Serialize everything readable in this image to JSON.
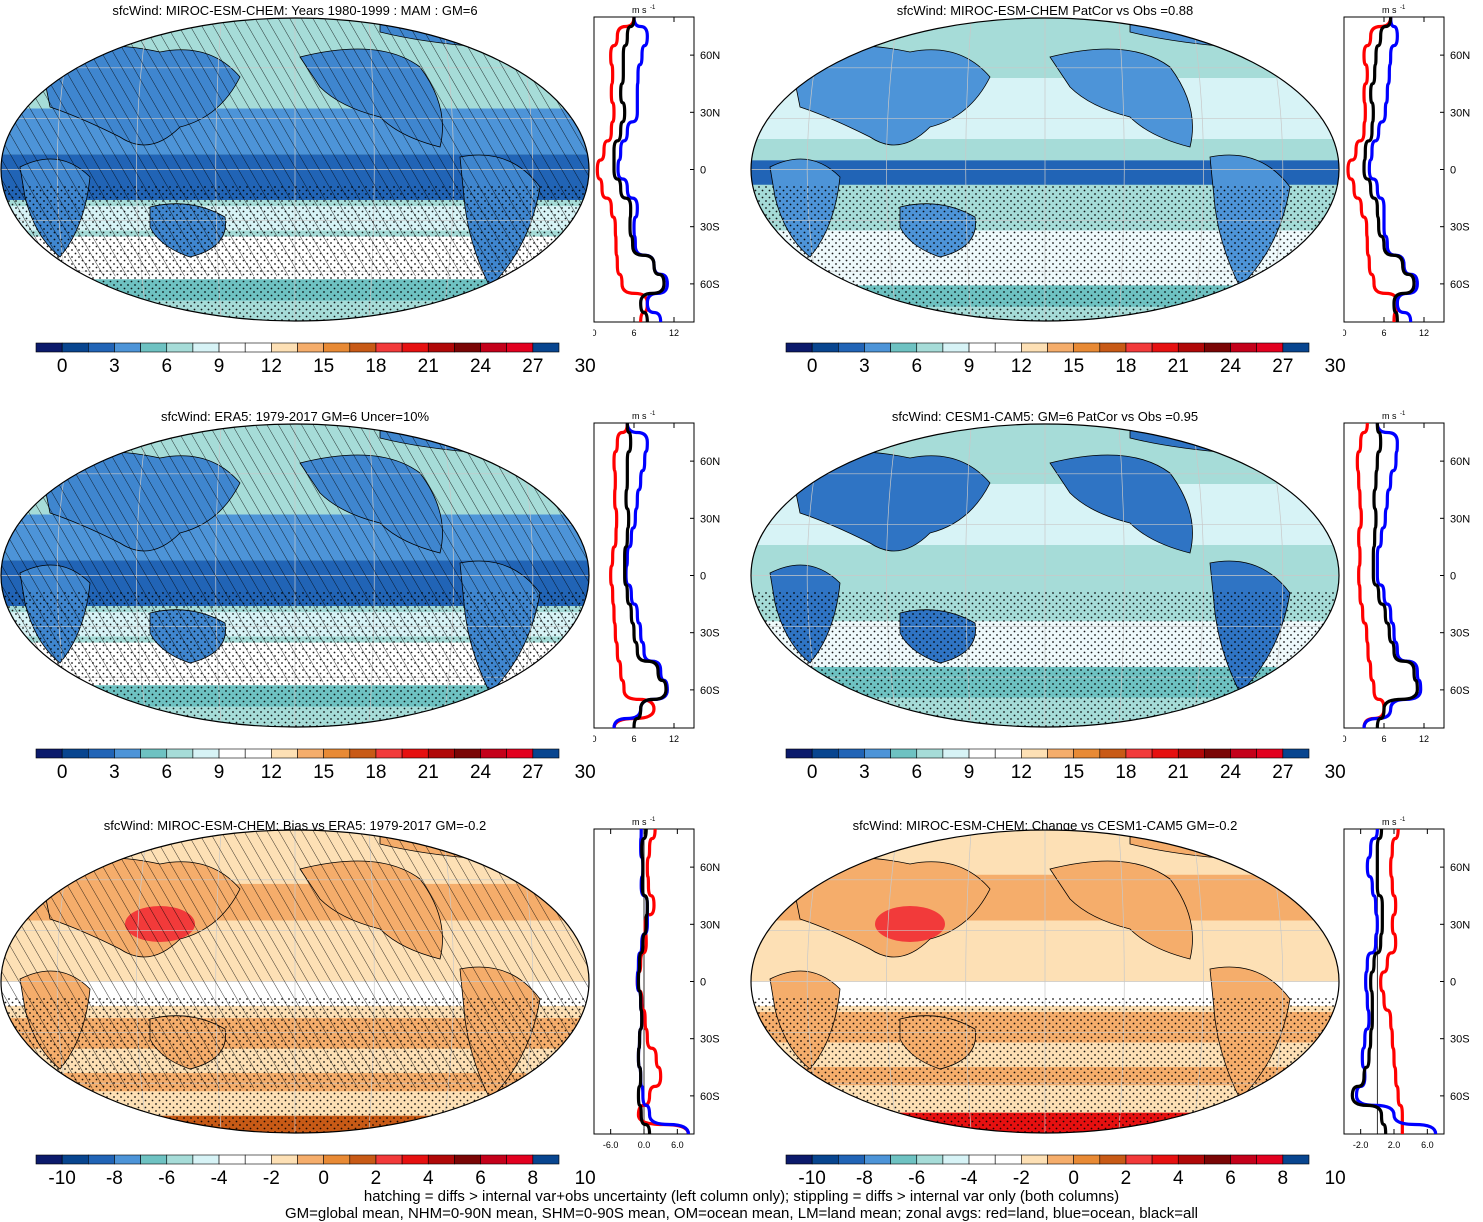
{
  "footer": {
    "line1": "hatching = diffs > internal var+obs uncertainty (left column only); stippling = diffs > internal var only (both columns)",
    "line2": "GM=global mean, NHM=0-90N mean, SHM=0-90S mean, OM=ocean mean, LM=land mean; zonal avgs: red=land, blue=ocean, black=all"
  },
  "colors": {
    "land": "#ff0000",
    "ocean": "#0000ff",
    "all": "#000000",
    "abs_scale": [
      "#0b1a6b",
      "#08458f",
      "#2164b6",
      "#4d94d8",
      "#6ec2c2",
      "#a6dcd8",
      "#d7f3f6",
      "#ffffff",
      "#ffffff",
      "#fde0b5",
      "#f5ad6b",
      "#e88a35",
      "#c85a16",
      "#f23a3a",
      "#e61010",
      "#b00808",
      "#7a0505",
      "#c4001a",
      "#e2001f",
      "#08458f"
    ],
    "diff_scale": [
      "#0b1a6b",
      "#08458f",
      "#2164b6",
      "#4d94d8",
      "#6ec2c2",
      "#a6dcd8",
      "#d7f3f6",
      "#ffffff",
      "#ffffff",
      "#fde0b5",
      "#f5ad6b",
      "#e88a35",
      "#c85a16",
      "#f23a3a",
      "#e61010",
      "#b00808",
      "#7a0505",
      "#c4001a",
      "#e2001f",
      "#08458f"
    ]
  },
  "panels": [
    {
      "id": "p1",
      "title": "sfcWind: MIROC-ESM-CHEM: Years 1980-1999 : MAM : GM=6",
      "scale": "abs",
      "hatch": true,
      "map": "abs1"
    },
    {
      "id": "p2",
      "title": "sfcWind: MIROC-ESM-CHEM PatCor vs Obs =0.88",
      "scale": "abs",
      "hatch": false,
      "map": "abs2"
    },
    {
      "id": "p3",
      "title": "sfcWind: ERA5: 1979-2017 GM=6 Uncer=10%",
      "scale": "abs",
      "hatch": true,
      "map": "abs1"
    },
    {
      "id": "p4",
      "title": "sfcWind: CESM1-CAM5: GM=6 PatCor vs Obs =0.95",
      "scale": "abs",
      "hatch": false,
      "map": "abs3"
    },
    {
      "id": "p5",
      "title": "sfcWind: MIROC-ESM-CHEM: Bias vs ERA5: 1979-2017 GM=-0.2",
      "scale": "diff",
      "hatch": true,
      "map": "diff1"
    },
    {
      "id": "p6",
      "title": "sfcWind: MIROC-ESM-CHEM: Change vs CESM1-CAM5 GM=-0.2",
      "scale": "diff",
      "hatch": false,
      "map": "diff2"
    }
  ],
  "colorbar_labels": {
    "abs": [
      "0",
      "3",
      "6",
      "9",
      "12",
      "15",
      "18",
      "21",
      "24",
      "27",
      "30"
    ],
    "diff": [
      "-10",
      "-8",
      "-6",
      "-4",
      "-2",
      "0",
      "2",
      "4",
      "6",
      "8",
      "10"
    ]
  },
  "zonal": {
    "units": "m s",
    "units_exp": "-1",
    "lat_ticks": [
      "60N",
      "30N",
      "0",
      "30S",
      "60S"
    ],
    "abs_x_ticks": [
      "0",
      "6",
      "12"
    ],
    "diff_left_x_ticks": [
      "-6.0",
      "0.0",
      "6.0"
    ],
    "diff_right_x_ticks": [
      "-2.0",
      "2.0",
      "6.0"
    ]
  },
  "chart_data": [
    {
      "type": "line",
      "title": "sfcWind: MIROC-ESM-CHEM: Years 1980-1999 : MAM : GM=6",
      "xlim": [
        0,
        15
      ],
      "ylim": [
        -80,
        80
      ],
      "y": [
        80,
        70,
        60,
        50,
        40,
        30,
        20,
        10,
        0,
        -10,
        -20,
        -30,
        -40,
        -50,
        -60,
        -70,
        -80
      ],
      "series": [
        {
          "name": "land",
          "values": [
            6,
            3.5,
            2.5,
            2.8,
            2.6,
            3,
            2.6,
            1.5,
            0.5,
            1.2,
            2.6,
            3.2,
            3.3,
            3.5,
            4.2,
            8,
            7
          ]
        },
        {
          "name": "ocean",
          "values": [
            6,
            8,
            7.2,
            6.6,
            6.5,
            6.5,
            5,
            4,
            3.6,
            5,
            6.5,
            6,
            6.2,
            9,
            11,
            8,
            10
          ]
        },
        {
          "name": "all",
          "values": [
            6,
            5,
            4.4,
            4.4,
            4,
            4.6,
            4,
            3,
            3,
            4,
            5.5,
            5.4,
            5.8,
            9,
            10.5,
            7,
            8
          ]
        }
      ]
    },
    {
      "type": "line",
      "title": "sfcWind: MIROC-ESM-CHEM PatCor vs Obs =0.88",
      "xlim": [
        0,
        15
      ],
      "ylim": [
        -80,
        80
      ],
      "y": [
        80,
        70,
        60,
        50,
        40,
        30,
        20,
        10,
        0,
        -10,
        -20,
        -30,
        -40,
        -50,
        -60,
        -70,
        -80
      ],
      "series": [
        {
          "name": "land",
          "values": [
            7,
            4,
            3,
            3.5,
            3,
            3.2,
            3,
            1.8,
            0.6,
            1.5,
            2.6,
            3.4,
            3.5,
            3.8,
            4.5,
            8,
            7.5
          ]
        },
        {
          "name": "ocean",
          "values": [
            7,
            8,
            7,
            6.8,
            6.5,
            6.2,
            5.2,
            4.2,
            3.8,
            5,
            6,
            6,
            6.5,
            9,
            11,
            8,
            10
          ]
        },
        {
          "name": "all",
          "values": [
            7,
            5.5,
            4.8,
            4.6,
            4,
            4.4,
            4.2,
            3.2,
            3,
            4,
            5,
            5.2,
            6,
            8.8,
            10.5,
            7.5,
            8
          ]
        }
      ]
    },
    {
      "type": "line",
      "title": "sfcWind: ERA5: 1979-2017 GM=6 Uncer=10%",
      "xlim": [
        0,
        15
      ],
      "ylim": [
        -80,
        80
      ],
      "y": [
        80,
        70,
        60,
        50,
        40,
        30,
        20,
        10,
        0,
        -10,
        -20,
        -30,
        -40,
        -50,
        -60,
        -70,
        -80
      ],
      "series": [
        {
          "name": "land",
          "values": [
            5,
            3.5,
            3,
            3.2,
            3.1,
            3.4,
            3.3,
            2.8,
            2.5,
            2.8,
            3,
            3.2,
            3.5,
            4,
            4.5,
            9,
            3
          ]
        },
        {
          "name": "ocean",
          "values": [
            5,
            8,
            7.6,
            7,
            6.5,
            6.2,
            5.6,
            5,
            4.8,
            5.6,
            6.5,
            7,
            7.5,
            10,
            11,
            7,
            3
          ]
        },
        {
          "name": "all",
          "values": [
            5,
            5.5,
            5,
            5,
            4.8,
            5.2,
            5,
            4.6,
            4.6,
            5,
            5.6,
            6,
            6.5,
            9.6,
            10.8,
            7,
            6
          ]
        }
      ]
    },
    {
      "type": "line",
      "title": "sfcWind: CESM1-CAM5: GM=6 PatCor vs Obs =0.95",
      "xlim": [
        0,
        15
      ],
      "ylim": [
        -80,
        80
      ],
      "y": [
        80,
        70,
        60,
        50,
        40,
        30,
        20,
        10,
        0,
        -10,
        -20,
        -30,
        -40,
        -50,
        -60,
        -70,
        -80
      ],
      "series": [
        {
          "name": "land",
          "values": [
            3.5,
            2.5,
            2,
            2.2,
            2.4,
            2.6,
            2.2,
            2.4,
            2.2,
            2.4,
            2.8,
            3.4,
            3.6,
            4,
            4.5,
            6,
            3
          ]
        },
        {
          "name": "ocean",
          "values": [
            5,
            8,
            7.8,
            7,
            6.5,
            6.2,
            5.6,
            5,
            5,
            6,
            7,
            7.5,
            8,
            11,
            11.5,
            7,
            3
          ]
        },
        {
          "name": "all",
          "values": [
            5,
            5.5,
            5,
            4.8,
            4.5,
            4.8,
            4.6,
            4.4,
            4.4,
            5.2,
            6.2,
            6.8,
            7.5,
            10.5,
            11,
            6,
            5
          ]
        }
      ]
    },
    {
      "type": "line",
      "title": "sfcWind: MIROC-ESM-CHEM: Bias vs ERA5: 1979-2017 GM=-0.2",
      "xlim": [
        -9,
        9
      ],
      "ylim": [
        -80,
        80
      ],
      "y": [
        80,
        70,
        60,
        50,
        40,
        30,
        20,
        10,
        0,
        -10,
        -20,
        -30,
        -40,
        -50,
        -60,
        -70,
        -80
      ],
      "series": [
        {
          "name": "land",
          "values": [
            2,
            1,
            0.6,
            0.8,
            1.8,
            0.2,
            0.4,
            -0.6,
            -1.2,
            -0.4,
            0.2,
            0.6,
            2.2,
            3,
            1,
            -1,
            8
          ]
        },
        {
          "name": "ocean",
          "values": [
            -0.5,
            -0.6,
            -0.2,
            -0.5,
            0.6,
            0.6,
            -0.4,
            -1,
            -1.2,
            -0.6,
            -0.4,
            -0.8,
            -1,
            -0.6,
            -0.2,
            1,
            8
          ]
        },
        {
          "name": "all",
          "values": [
            0.4,
            -0.4,
            -0.2,
            -0.3,
            0.6,
            0.4,
            -0.2,
            -0.8,
            -1,
            -0.6,
            -0.4,
            -0.8,
            -1,
            -0.6,
            -1,
            -0.5,
            1
          ]
        }
      ]
    },
    {
      "type": "line",
      "title": "sfcWind: MIROC-ESM-CHEM: Change vs CESM1-CAM5 GM=-0.2",
      "xlim": [
        -4,
        8
      ],
      "ylim": [
        -80,
        80
      ],
      "y": [
        80,
        70,
        60,
        50,
        40,
        30,
        20,
        10,
        0,
        -10,
        -20,
        -30,
        -40,
        -50,
        -60,
        -70,
        -80
      ],
      "series": [
        {
          "name": "land",
          "values": [
            2.5,
            1.8,
            1.6,
            1.8,
            2.2,
            1.8,
            2.2,
            1.2,
            0.4,
            0.8,
            1.6,
            1.8,
            2,
            2.2,
            2.5,
            3,
            3
          ]
        },
        {
          "name": "ocean",
          "values": [
            0,
            -0.8,
            -1.2,
            -0.6,
            -0.2,
            0,
            -0.2,
            -1.2,
            -1.4,
            -1.2,
            -1,
            -1.5,
            -1.8,
            -1.5,
            -2.5,
            2,
            7
          ]
        },
        {
          "name": "all",
          "values": [
            0.5,
            0,
            0,
            0,
            0.6,
            0.6,
            0.4,
            -0.4,
            -0.8,
            -0.6,
            -0.6,
            -0.8,
            -1,
            -1.6,
            -3,
            0.5,
            1
          ]
        }
      ]
    }
  ]
}
